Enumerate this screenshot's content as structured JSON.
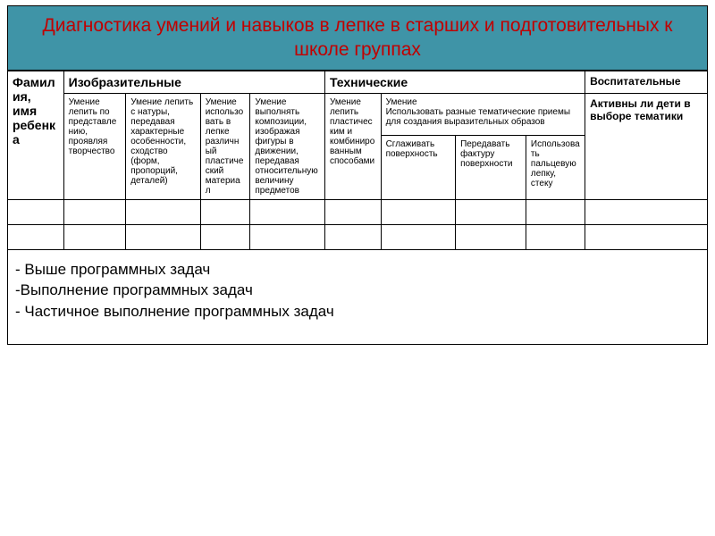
{
  "title": "Диагностика умений и навыков в лепке в старших и подготовительных к школе группах",
  "banner_bg": "#3f94a7",
  "title_color": "#c00000",
  "headers": {
    "name": "Фамилия, имя ребенка",
    "visual": "Изобразительные",
    "technical": "Технические",
    "educational": "Воспитательные"
  },
  "sub": {
    "v1": "Умение лепить по представлению, проявляя творчество",
    "v2": "Умение лепить с натуры, передавая характерные особенности, сходство (форм, пропорций, деталей)",
    "v3": "Умение использовать в лепке различный пластический материал",
    "v4": "Умение выполнять композиции, изображая фигуры в движении, передавая относительную величину предметов",
    "t1": "Умение лепить пластическим и комбинированным способами",
    "t2": "Умение\nИспользовать разные тематические приемы для создания выразительных образов",
    "t2a": "Сглаживать поверхность",
    "t2b": "Передавать фактуру поверхности",
    "t2c": "Использовать пальцевую лепку, стеку",
    "edu": "Активны ли дети в выборе тематики"
  },
  "legend": {
    "l1": "- Выше программных задач",
    "l2": "-Выполнение программных задач",
    "l3": "- Частичное выполнение программных задач"
  },
  "col_widths": {
    "name": 54,
    "v1": 60,
    "v2": 72,
    "v3": 48,
    "v4": 72,
    "t1": 54,
    "t2a": 72,
    "t2b": 68,
    "t2c": 57,
    "edu": 118
  }
}
